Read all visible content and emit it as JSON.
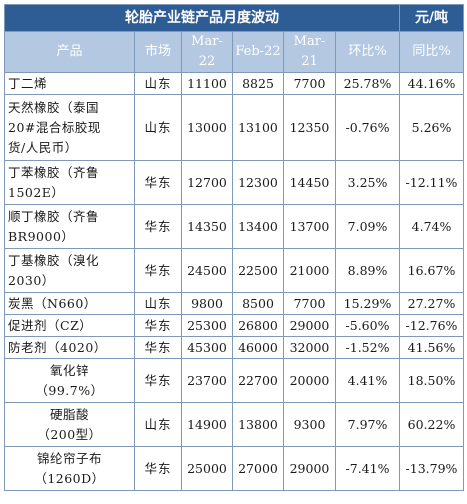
{
  "title": "轮胎产业链产品月度波动",
  "unit": "元/吨",
  "headers": [
    "产品",
    "市场",
    "Mar-22",
    "Feb-22",
    "Mar-21",
    "环比%",
    "同比%"
  ],
  "rows": [
    {
      "name": [
        "丁二烯"
      ],
      "market": "山东",
      "mar22": "11100",
      "feb22": "8825",
      "mar21": "7700",
      "mom": "25.78%",
      "yoy": "44.16%"
    },
    {
      "name": [
        "天然橡胶（泰国",
        "20#混合标胶现",
        "货/人民币）"
      ],
      "market": "山东",
      "mar22": "13000",
      "feb22": "13100",
      "mar21": "12350",
      "mom": "-0.76%",
      "yoy": "5.26%"
    },
    {
      "name": [
        "丁苯橡胶（齐鲁",
        "1502E）"
      ],
      "market": "华东",
      "mar22": "12700",
      "feb22": "12300",
      "mar21": "14450",
      "mom": "3.25%",
      "yoy": "-12.11%"
    },
    {
      "name": [
        "顺丁橡胶（齐鲁",
        "BR9000）"
      ],
      "market": "华东",
      "mar22": "14350",
      "feb22": "13400",
      "mar21": "13700",
      "mom": "7.09%",
      "yoy": "4.74%"
    },
    {
      "name": [
        "丁基橡胶（溴化",
        "2030）"
      ],
      "market": "华东",
      "mar22": "24500",
      "feb22": "22500",
      "mar21": "21000",
      "mom": "8.89%",
      "yoy": "16.67%"
    },
    {
      "name": [
        "炭黑（N660）"
      ],
      "market": "山东",
      "mar22": "9800",
      "feb22": "8500",
      "mar21": "7700",
      "mom": "15.29%",
      "yoy": "27.27%"
    },
    {
      "name": [
        "促进剂（CZ）"
      ],
      "market": "华东",
      "mar22": "25300",
      "feb22": "26800",
      "mar21": "29000",
      "mom": "-5.60%",
      "yoy": "-12.76%"
    },
    {
      "name": [
        "防老剂（4020）"
      ],
      "market": "华东",
      "mar22": "45300",
      "feb22": "46000",
      "mar21": "32000",
      "mom": "-1.52%",
      "yoy": "41.56%"
    },
    {
      "name": [
        "氧化锌",
        "（99.7%）"
      ],
      "market": "华东",
      "mar22": "23700",
      "feb22": "22700",
      "mar21": "20000",
      "mom": "4.41%",
      "yoy": "18.50%"
    },
    {
      "name": [
        "硬脂酸",
        "（200型）"
      ],
      "market": "山东",
      "mar22": "14900",
      "feb22": "13800",
      "mar21": "9300",
      "mom": "7.97%",
      "yoy": "60.22%"
    },
    {
      "name": [
        "锦纶帘子布",
        "（1260D）"
      ],
      "market": "华东",
      "mar22": "25000",
      "feb22": "27000",
      "mar21": "29000",
      "mom": "-7.41%",
      "yoy": "-13.79%"
    }
  ]
}
